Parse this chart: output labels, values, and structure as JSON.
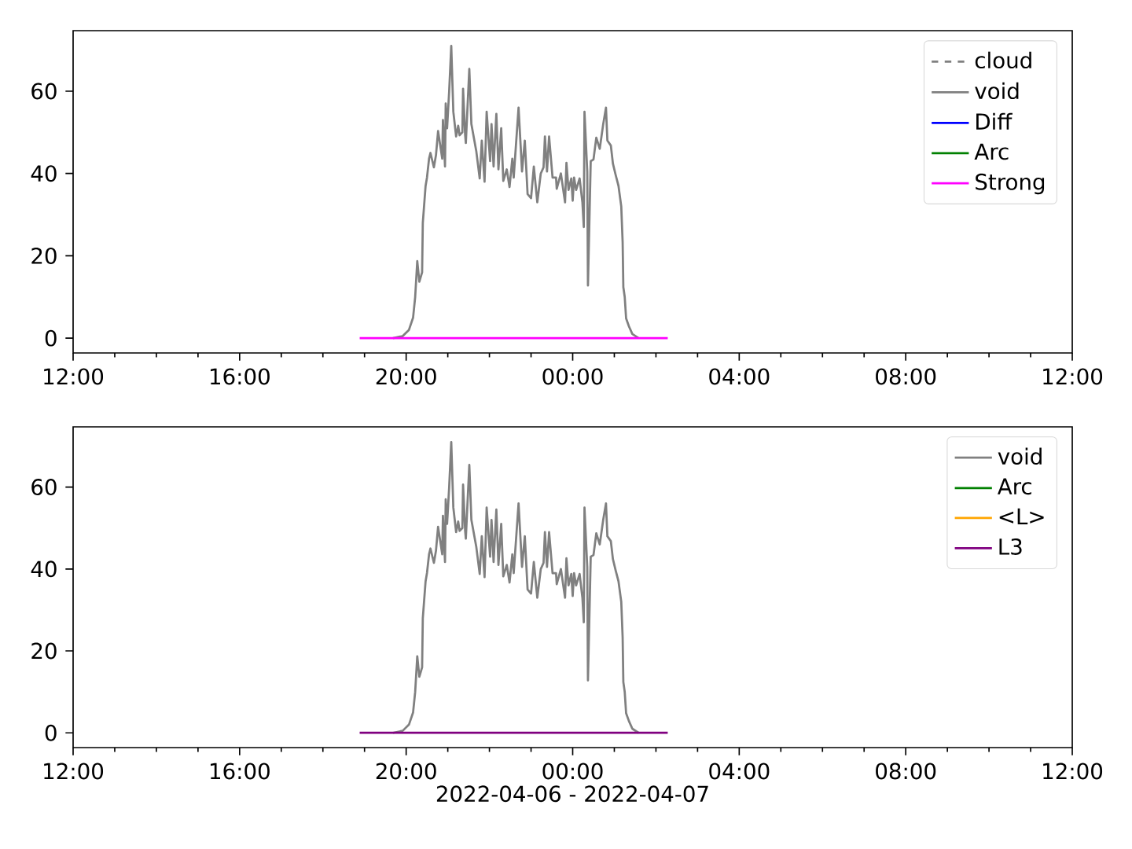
{
  "chart_data": [
    {
      "type": "line",
      "xlim": [
        "2022-04-06T12:00",
        "2022-04-07T12:00"
      ],
      "ylim": [
        -3.6,
        74.7
      ],
      "xticks": [
        {
          "value": "2022-04-06T12:00",
          "label": "12:00"
        },
        {
          "value": "2022-04-06T16:00",
          "label": "16:00"
        },
        {
          "value": "2022-04-06T20:00",
          "label": "20:00"
        },
        {
          "value": "2022-04-07T00:00",
          "label": "00:00"
        },
        {
          "value": "2022-04-07T04:00",
          "label": "04:00"
        },
        {
          "value": "2022-04-07T08:00",
          "label": "08:00"
        },
        {
          "value": "2022-04-07T12:00",
          "label": "12:00"
        }
      ],
      "yticks": [
        0,
        20,
        40,
        60
      ],
      "legend": "top right",
      "marker": "none",
      "series": [
        {
          "name": "cloud",
          "color": "#808080",
          "line_style": "dashed"
        },
        {
          "name": "void",
          "color": "#808080",
          "x": [
            "2022-04-06T19:41",
            "2022-04-06T19:55",
            "2022-04-06T20:04",
            "2022-04-06T20:10",
            "2022-04-06T20:13",
            "2022-04-06T20:16",
            "2022-04-06T20:19",
            "2022-04-06T20:23",
            "2022-04-06T20:24",
            "2022-04-06T20:28",
            "2022-04-06T20:30",
            "2022-04-06T20:33",
            "2022-04-06T20:35",
            "2022-04-06T20:40",
            "2022-04-06T20:43",
            "2022-04-06T20:46",
            "2022-04-06T20:52",
            "2022-04-06T20:53",
            "2022-04-06T20:56",
            "2022-04-06T20:57",
            "2022-04-06T20:59",
            "2022-04-06T21:02",
            "2022-04-06T21:05",
            "2022-04-06T21:08",
            "2022-04-06T21:12",
            "2022-04-06T21:15",
            "2022-04-06T21:17",
            "2022-04-06T21:21",
            "2022-04-06T21:22",
            "2022-04-06T21:25",
            "2022-04-06T21:26",
            "2022-04-06T21:31",
            "2022-04-06T21:34",
            "2022-04-06T21:41",
            "2022-04-06T21:46",
            "2022-04-06T21:49",
            "2022-04-06T21:53",
            "2022-04-06T21:56",
            "2022-04-06T22:01",
            "2022-04-06T22:03",
            "2022-04-06T22:06",
            "2022-04-06T22:10",
            "2022-04-06T22:13",
            "2022-04-06T22:17",
            "2022-04-06T22:20",
            "2022-04-06T22:25",
            "2022-04-06T22:29",
            "2022-04-06T22:33",
            "2022-04-06T22:35",
            "2022-04-06T22:42",
            "2022-04-06T22:47",
            "2022-04-06T22:51",
            "2022-04-06T22:55",
            "2022-04-06T23:00",
            "2022-04-06T23:04",
            "2022-04-06T23:09",
            "2022-04-06T23:14",
            "2022-04-06T23:18",
            "2022-04-06T23:20",
            "2022-04-06T23:23",
            "2022-04-06T23:26",
            "2022-04-06T23:31",
            "2022-04-06T23:36",
            "2022-04-06T23:37",
            "2022-04-06T23:43",
            "2022-04-06T23:49",
            "2022-04-06T23:51",
            "2022-04-06T23:54",
            "2022-04-06T23:58",
            "2022-04-07T00:00",
            "2022-04-07T00:02",
            "2022-04-07T00:05",
            "2022-04-07T00:10",
            "2022-04-07T00:14",
            "2022-04-07T00:16",
            "2022-04-07T00:17",
            "2022-04-07T00:21",
            "2022-04-07T00:22",
            "2022-04-07T00:26",
            "2022-04-07T00:30",
            "2022-04-07T00:34",
            "2022-04-07T00:39",
            "2022-04-07T00:44",
            "2022-04-07T00:48",
            "2022-04-07T00:50",
            "2022-04-07T00:55",
            "2022-04-07T00:58",
            "2022-04-07T01:02",
            "2022-04-07T01:06",
            "2022-04-07T01:10",
            "2022-04-07T01:12",
            "2022-04-07T01:13",
            "2022-04-07T01:15",
            "2022-04-07T01:17",
            "2022-04-07T01:21",
            "2022-04-07T01:26",
            "2022-04-07T01:35"
          ],
          "values": [
            0,
            0.5,
            2,
            5,
            10,
            18.7,
            13.7,
            16,
            28,
            37,
            39,
            43.6,
            45,
            41.5,
            44.5,
            50.3,
            43.6,
            53,
            41.7,
            57,
            51,
            60,
            71,
            55,
            49,
            51.6,
            49.3,
            50,
            60.6,
            49.3,
            47.4,
            65.4,
            52,
            45.5,
            38.8,
            48,
            38,
            55,
            43,
            52,
            41.7,
            54.5,
            41,
            51,
            38.2,
            41,
            36.7,
            43.6,
            39,
            56,
            40.5,
            48,
            35,
            34,
            41.7,
            33,
            40,
            41.5,
            49,
            40.5,
            49,
            39,
            39,
            36.3,
            40,
            33,
            42.6,
            36,
            38.8,
            33.4,
            39,
            36,
            38.8,
            33,
            27,
            55,
            40.5,
            12.8,
            43,
            43.4,
            48.7,
            46,
            52,
            56,
            48,
            46.8,
            42.4,
            39.6,
            37,
            32,
            23.3,
            12.4,
            10,
            4.8,
            2.9,
            1,
            0
          ]
        },
        {
          "name": "Diff",
          "color": "#0000ff"
        },
        {
          "name": "Arc",
          "color": "#008000"
        },
        {
          "name": "Strong",
          "color": "#ff00ff",
          "x": [
            "2022-04-06T18:53",
            "2022-04-07T02:17"
          ],
          "values": [
            0,
            0
          ]
        }
      ]
    },
    {
      "type": "line",
      "xlabel": "2022-04-06 - 2022-04-07",
      "xlim": [
        "2022-04-06T12:00",
        "2022-04-07T12:00"
      ],
      "ylim": [
        -3.6,
        74.7
      ],
      "xticks": [
        {
          "value": "2022-04-06T12:00",
          "label": "12:00"
        },
        {
          "value": "2022-04-06T16:00",
          "label": "16:00"
        },
        {
          "value": "2022-04-06T20:00",
          "label": "20:00"
        },
        {
          "value": "2022-04-07T00:00",
          "label": "00:00"
        },
        {
          "value": "2022-04-07T04:00",
          "label": "04:00"
        },
        {
          "value": "2022-04-07T08:00",
          "label": "08:00"
        },
        {
          "value": "2022-04-07T12:00",
          "label": "12:00"
        }
      ],
      "yticks": [
        0,
        20,
        40,
        60
      ],
      "legend": "top right",
      "marker": "none",
      "series": [
        {
          "name": "void",
          "color": "#808080",
          "x": [
            "2022-04-06T19:41",
            "2022-04-06T19:55",
            "2022-04-06T20:04",
            "2022-04-06T20:10",
            "2022-04-06T20:13",
            "2022-04-06T20:16",
            "2022-04-06T20:19",
            "2022-04-06T20:23",
            "2022-04-06T20:24",
            "2022-04-06T20:28",
            "2022-04-06T20:30",
            "2022-04-06T20:33",
            "2022-04-06T20:35",
            "2022-04-06T20:40",
            "2022-04-06T20:43",
            "2022-04-06T20:46",
            "2022-04-06T20:52",
            "2022-04-06T20:53",
            "2022-04-06T20:56",
            "2022-04-06T20:57",
            "2022-04-06T20:59",
            "2022-04-06T21:02",
            "2022-04-06T21:05",
            "2022-04-06T21:08",
            "2022-04-06T21:12",
            "2022-04-06T21:15",
            "2022-04-06T21:17",
            "2022-04-06T21:21",
            "2022-04-06T21:22",
            "2022-04-06T21:25",
            "2022-04-06T21:26",
            "2022-04-06T21:31",
            "2022-04-06T21:34",
            "2022-04-06T21:41",
            "2022-04-06T21:46",
            "2022-04-06T21:49",
            "2022-04-06T21:53",
            "2022-04-06T21:56",
            "2022-04-06T22:01",
            "2022-04-06T22:03",
            "2022-04-06T22:06",
            "2022-04-06T22:10",
            "2022-04-06T22:13",
            "2022-04-06T22:17",
            "2022-04-06T22:20",
            "2022-04-06T22:25",
            "2022-04-06T22:29",
            "2022-04-06T22:33",
            "2022-04-06T22:35",
            "2022-04-06T22:42",
            "2022-04-06T22:47",
            "2022-04-06T22:51",
            "2022-04-06T22:55",
            "2022-04-06T23:00",
            "2022-04-06T23:04",
            "2022-04-06T23:09",
            "2022-04-06T23:14",
            "2022-04-06T23:18",
            "2022-04-06T23:20",
            "2022-04-06T23:23",
            "2022-04-06T23:26",
            "2022-04-06T23:31",
            "2022-04-06T23:36",
            "2022-04-06T23:37",
            "2022-04-06T23:43",
            "2022-04-06T23:49",
            "2022-04-06T23:51",
            "2022-04-06T23:54",
            "2022-04-06T23:58",
            "2022-04-07T00:00",
            "2022-04-07T00:02",
            "2022-04-07T00:05",
            "2022-04-07T00:10",
            "2022-04-07T00:14",
            "2022-04-07T00:16",
            "2022-04-07T00:17",
            "2022-04-07T00:21",
            "2022-04-07T00:22",
            "2022-04-07T00:26",
            "2022-04-07T00:30",
            "2022-04-07T00:34",
            "2022-04-07T00:39",
            "2022-04-07T00:44",
            "2022-04-07T00:48",
            "2022-04-07T00:50",
            "2022-04-07T00:55",
            "2022-04-07T00:58",
            "2022-04-07T01:02",
            "2022-04-07T01:06",
            "2022-04-07T01:10",
            "2022-04-07T01:12",
            "2022-04-07T01:13",
            "2022-04-07T01:15",
            "2022-04-07T01:17",
            "2022-04-07T01:21",
            "2022-04-07T01:26",
            "2022-04-07T01:35"
          ],
          "values": [
            0,
            0.5,
            2,
            5,
            10,
            18.7,
            13.7,
            16,
            28,
            37,
            39,
            43.6,
            45,
            41.5,
            44.5,
            50.3,
            43.6,
            53,
            41.7,
            57,
            51,
            60,
            71,
            55,
            49,
            51.6,
            49.3,
            50,
            60.6,
            49.3,
            47.4,
            65.4,
            52,
            45.5,
            38.8,
            48,
            38,
            55,
            43,
            52,
            41.7,
            54.5,
            41,
            51,
            38.2,
            41,
            36.7,
            43.6,
            39,
            56,
            40.5,
            48,
            35,
            34,
            41.7,
            33,
            40,
            41.5,
            49,
            40.5,
            49,
            39,
            39,
            36.3,
            40,
            33,
            42.6,
            36,
            38.8,
            33.4,
            39,
            36,
            38.8,
            33,
            27,
            55,
            40.5,
            12.8,
            43,
            43.4,
            48.7,
            46,
            52,
            56,
            48,
            46.8,
            42.4,
            39.6,
            37,
            32,
            23.3,
            12.4,
            10,
            4.8,
            2.9,
            1,
            0
          ]
        },
        {
          "name": "Arc",
          "color": "#008000"
        },
        {
          "name": "<L>",
          "color": "#ffa500"
        },
        {
          "name": "L3",
          "color": "#800080",
          "x": [
            "2022-04-06T18:53",
            "2022-04-07T02:17"
          ],
          "values": [
            0,
            0
          ]
        }
      ]
    }
  ]
}
